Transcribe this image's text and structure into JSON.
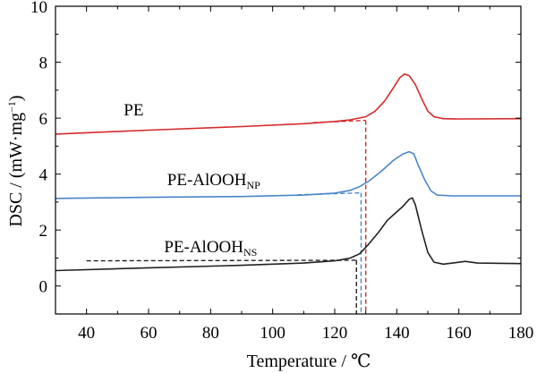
{
  "chart_data": {
    "type": "line",
    "xlabel": "Temperature / ℃",
    "ylabel_main": "DSC / (mW·mg",
    "ylabel_sup": "−1",
    "ylabel_close": ")",
    "xlim": [
      30,
      180
    ],
    "ylim": [
      -1,
      10
    ],
    "x_ticks": [
      40,
      60,
      80,
      100,
      120,
      140,
      160,
      180
    ],
    "y_ticks": [
      0,
      2,
      4,
      6,
      8,
      10
    ],
    "grid": false,
    "legend": "none",
    "series": [
      {
        "name": "PE",
        "label_main": "PE",
        "label_sub": "",
        "color": "#d42a2a",
        "label_at": [
          52,
          6.1
        ],
        "points": [
          [
            30,
            5.43
          ],
          [
            60,
            5.57
          ],
          [
            90,
            5.7
          ],
          [
            110,
            5.8
          ],
          [
            120,
            5.88
          ],
          [
            125,
            5.94
          ],
          [
            130,
            6.05
          ],
          [
            133,
            6.25
          ],
          [
            136,
            6.6
          ],
          [
            139,
            7.1
          ],
          [
            141,
            7.45
          ],
          [
            142.5,
            7.58
          ],
          [
            144,
            7.52
          ],
          [
            146,
            7.2
          ],
          [
            148,
            6.7
          ],
          [
            150,
            6.25
          ],
          [
            152,
            6.05
          ],
          [
            155,
            5.98
          ],
          [
            160,
            5.97
          ],
          [
            180,
            5.98
          ]
        ],
        "onset": {
          "x": 130,
          "y": 5.92,
          "baseline_from": 113,
          "baseline_y": 5.84
        }
      },
      {
        "name": "PE-AlOOHNP",
        "label_main": "PE-AlOOH",
        "label_sub": "NP",
        "color": "#4a86c8",
        "label_at": [
          66,
          3.6
        ],
        "points": [
          [
            30,
            3.13
          ],
          [
            60,
            3.17
          ],
          [
            90,
            3.2
          ],
          [
            110,
            3.25
          ],
          [
            120,
            3.32
          ],
          [
            125,
            3.42
          ],
          [
            128,
            3.55
          ],
          [
            131,
            3.75
          ],
          [
            135,
            4.1
          ],
          [
            139,
            4.5
          ],
          [
            142,
            4.72
          ],
          [
            144,
            4.8
          ],
          [
            145.5,
            4.72
          ],
          [
            147,
            4.3
          ],
          [
            149,
            3.8
          ],
          [
            151,
            3.4
          ],
          [
            153,
            3.25
          ],
          [
            158,
            3.22
          ],
          [
            180,
            3.22
          ]
        ],
        "onset": {
          "x": 128.5,
          "y": 3.33,
          "baseline_from": 108,
          "baseline_y": 3.26
        }
      },
      {
        "name": "PE-AlOOHNS",
        "label_main": "PE-AlOOH",
        "label_sub": "NS",
        "color": "#222222",
        "label_at": [
          65,
          1.2
        ],
        "points": [
          [
            30,
            0.55
          ],
          [
            60,
            0.65
          ],
          [
            90,
            0.74
          ],
          [
            110,
            0.82
          ],
          [
            120,
            0.9
          ],
          [
            125,
            1.0
          ],
          [
            128,
            1.15
          ],
          [
            131,
            1.5
          ],
          [
            134,
            1.9
          ],
          [
            137,
            2.35
          ],
          [
            140,
            2.65
          ],
          [
            142,
            2.85
          ],
          [
            144,
            3.1
          ],
          [
            145,
            3.15
          ],
          [
            146,
            2.9
          ],
          [
            148,
            2.0
          ],
          [
            150,
            1.2
          ],
          [
            152,
            0.85
          ],
          [
            155,
            0.78
          ],
          [
            158,
            0.82
          ],
          [
            162,
            0.88
          ],
          [
            166,
            0.82
          ],
          [
            180,
            0.8
          ]
        ],
        "onset": {
          "x": 127,
          "y": 0.92,
          "baseline_from": 40,
          "baseline_y": 0.9
        }
      }
    ]
  }
}
